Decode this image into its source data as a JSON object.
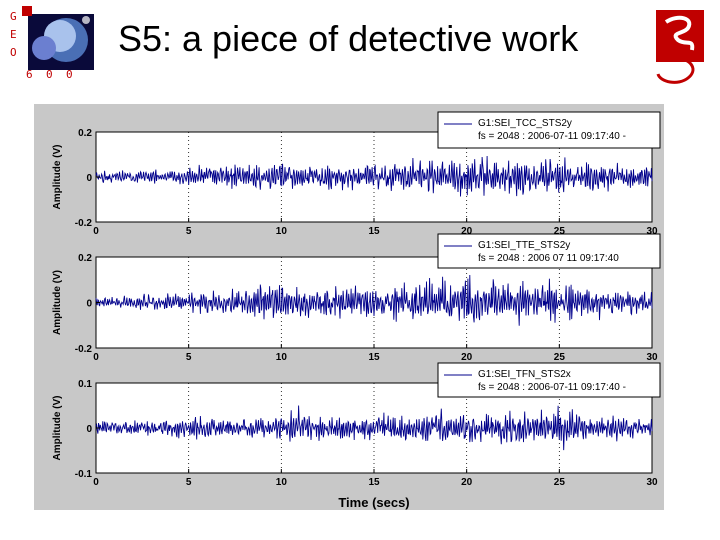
{
  "slide": {
    "title": "S5: a piece of detective work",
    "logo_letters": [
      "G",
      "E",
      "O",
      "6",
      "0",
      "0"
    ]
  },
  "colors": {
    "figure_bg": "#c8c8c8",
    "signal": "#00008b",
    "logo_red": "#c00000"
  },
  "chart_data": [
    {
      "type": "line",
      "legend": [
        "G1:SEI_TCC_STS2y",
        "fs = 2048 : 2006-07-11 09:17:40 -"
      ],
      "ylabel": "Amplitude (V)",
      "xlabel": "",
      "ylim": [
        -0.2,
        0.2
      ],
      "xlim": [
        0,
        30
      ],
      "xticks": [
        "0",
        "5",
        "10",
        "15",
        "20",
        "25",
        "30"
      ],
      "yticks": [
        "0.2",
        "0",
        "-0.2"
      ],
      "amplitude_profile": [
        [
          0,
          0.025
        ],
        [
          4,
          0.03
        ],
        [
          7,
          0.05
        ],
        [
          10,
          0.06
        ],
        [
          14,
          0.055
        ],
        [
          18,
          0.07
        ],
        [
          20,
          0.09
        ],
        [
          22,
          0.08
        ],
        [
          25,
          0.075
        ],
        [
          28,
          0.055
        ],
        [
          30,
          0.045
        ]
      ],
      "seed": 11
    },
    {
      "type": "line",
      "legend": [
        "G1:SEI_TTE_STS2y",
        "fs = 2048 : 2006 07 11 09:17:40"
      ],
      "ylabel": "Amplitude (V)",
      "xlabel": "",
      "ylim": [
        -0.2,
        0.2
      ],
      "xlim": [
        0,
        30
      ],
      "xticks": [
        "0",
        "5",
        "10",
        "15",
        "20",
        "25",
        "30"
      ],
      "yticks": [
        "0.2",
        "0",
        "-0.2"
      ],
      "amplitude_profile": [
        [
          0,
          0.02
        ],
        [
          5,
          0.04
        ],
        [
          10,
          0.09
        ],
        [
          12,
          0.07
        ],
        [
          15,
          0.06
        ],
        [
          18,
          0.09
        ],
        [
          20,
          0.11
        ],
        [
          22,
          0.09
        ],
        [
          25,
          0.08
        ],
        [
          28,
          0.05
        ],
        [
          30,
          0.045
        ]
      ],
      "seed": 29
    },
    {
      "type": "line",
      "legend": [
        "G1:SEI_TFN_STS2x",
        "fs = 2048 : 2006-07-11 09:17:40 -"
      ],
      "ylabel": "Amplitude (V)",
      "xlabel": "Time (secs)",
      "ylim": [
        -0.1,
        0.1
      ],
      "xlim": [
        0,
        30
      ],
      "xticks": [
        "0",
        "5",
        "10",
        "15",
        "20",
        "25",
        "30"
      ],
      "yticks": [
        "0.1",
        "0",
        "-0.1"
      ],
      "amplitude_profile": [
        [
          0,
          0.015
        ],
        [
          5,
          0.02
        ],
        [
          10,
          0.025
        ],
        [
          11,
          0.04
        ],
        [
          12,
          0.022
        ],
        [
          15,
          0.025
        ],
        [
          19,
          0.035
        ],
        [
          20,
          0.03
        ],
        [
          24,
          0.035
        ],
        [
          25,
          0.045
        ],
        [
          26,
          0.03
        ],
        [
          30,
          0.02
        ]
      ],
      "seed": 47
    }
  ]
}
